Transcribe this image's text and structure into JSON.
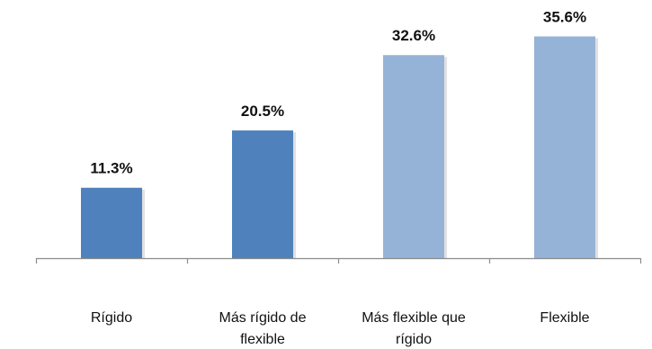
{
  "chart_data": {
    "type": "bar",
    "title": "",
    "xlabel": "",
    "ylabel": "",
    "categories": [
      [
        "Rígido"
      ],
      [
        "Más rígido de",
        "flexible"
      ],
      [
        "Más flexible que",
        "rígido"
      ],
      [
        "Flexible"
      ]
    ],
    "values": [
      11.3,
      20.5,
      32.6,
      35.6
    ],
    "value_labels": [
      "11.3%",
      "20.5%",
      "32.6%",
      "35.6%"
    ],
    "ylim": [
      0,
      40
    ],
    "grid": false,
    "legend": "none",
    "colors": [
      "#4f81bd",
      "#4f81bd",
      "#95b3d7",
      "#95b3d7"
    ],
    "axis_color": "#8c8c8c",
    "shadow_color": "#d9d9d9"
  }
}
